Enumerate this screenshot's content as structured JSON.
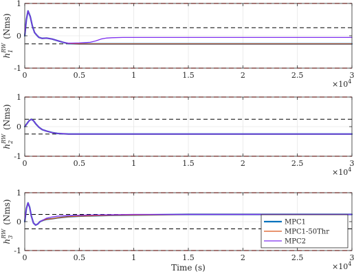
{
  "chart_data": [
    {
      "type": "line",
      "ylabel": "h_1^RW (Nms)",
      "ylabel_main": "h",
      "ylabel_sub": "1",
      "ylabel_sup": "RW",
      "ylabel_unit": "(Nms)",
      "xlim": [
        0,
        30000
      ],
      "ylim": [
        -1,
        1
      ],
      "xticks": [
        0,
        0.5,
        1,
        1.5,
        2,
        2.5,
        3
      ],
      "yticks": [
        -1,
        0,
        1
      ],
      "x_multiplier": "×10",
      "x_multiplier_exp": "4",
      "grid": true,
      "ref_lines": [
        {
          "y": 1,
          "color": "#e8201c",
          "style": "dashed"
        },
        {
          "y": -1,
          "color": "#e8201c",
          "style": "dashed"
        },
        {
          "y": 0.25,
          "color": "#000000",
          "style": "dashed"
        },
        {
          "y": -0.25,
          "color": "#000000",
          "style": "dashed"
        }
      ],
      "series": [
        {
          "name": "MPC1",
          "color": "#0072bd",
          "width": 2.2,
          "x": [
            0,
            150,
            300,
            500,
            700,
            900,
            1100,
            1300,
            1600,
            2000,
            2500,
            3000,
            3500,
            4000,
            5000,
            6000,
            7000,
            8000,
            10000,
            15000,
            20000,
            25000,
            30000
          ],
          "y": [
            0,
            0.5,
            0.77,
            0.6,
            0.3,
            0.1,
            0.02,
            -0.05,
            -0.08,
            -0.07,
            -0.1,
            -0.15,
            -0.2,
            -0.24,
            -0.25,
            -0.25,
            -0.25,
            -0.25,
            -0.25,
            -0.25,
            -0.25,
            -0.25,
            -0.25
          ]
        },
        {
          "name": "MPC1-50Thr",
          "color": "#d95319",
          "width": 1.3,
          "x": [
            0,
            150,
            300,
            500,
            700,
            900,
            1100,
            1300,
            1600,
            2000,
            2500,
            3000,
            3500,
            4000,
            5000,
            6000,
            7000,
            8000,
            10000,
            15000,
            20000,
            25000,
            30000
          ],
          "y": [
            0,
            0.5,
            0.77,
            0.6,
            0.3,
            0.1,
            0.02,
            -0.05,
            -0.08,
            -0.07,
            -0.1,
            -0.15,
            -0.2,
            -0.24,
            -0.25,
            -0.25,
            -0.25,
            -0.25,
            -0.25,
            -0.25,
            -0.25,
            -0.25,
            -0.25
          ]
        },
        {
          "name": "MPC2",
          "color": "#7e2fef",
          "width": 1.3,
          "x": [
            0,
            150,
            300,
            500,
            700,
            900,
            1100,
            1300,
            1600,
            2000,
            2500,
            3000,
            3500,
            4000,
            5000,
            6000,
            6500,
            7000,
            7500,
            8000,
            9000,
            10000,
            15000,
            20000,
            25000,
            30000
          ],
          "y": [
            0,
            0.5,
            0.77,
            0.6,
            0.3,
            0.1,
            0.02,
            -0.05,
            -0.08,
            -0.07,
            -0.1,
            -0.15,
            -0.2,
            -0.23,
            -0.22,
            -0.2,
            -0.16,
            -0.1,
            -0.07,
            -0.06,
            -0.05,
            -0.05,
            -0.05,
            -0.05,
            -0.05,
            -0.05
          ]
        }
      ]
    },
    {
      "type": "line",
      "ylabel": "h_2^RW (Nms)",
      "ylabel_main": "h",
      "ylabel_sub": "2",
      "ylabel_sup": "RW",
      "ylabel_unit": "(Nms)",
      "xlim": [
        0,
        30000
      ],
      "ylim": [
        -1,
        1
      ],
      "xticks": [
        0,
        0.5,
        1,
        1.5,
        2,
        2.5,
        3
      ],
      "yticks": [
        -1,
        0,
        1
      ],
      "x_multiplier": "×10",
      "x_multiplier_exp": "4",
      "grid": true,
      "ref_lines": [
        {
          "y": 1,
          "color": "#e8201c",
          "style": "dashed"
        },
        {
          "y": -1,
          "color": "#e8201c",
          "style": "dashed"
        },
        {
          "y": 0.25,
          "color": "#000000",
          "style": "dashed"
        },
        {
          "y": -0.25,
          "color": "#000000",
          "style": "dashed"
        }
      ],
      "series": [
        {
          "name": "MPC1",
          "color": "#0072bd",
          "width": 2.2,
          "x": [
            0,
            200,
            400,
            600,
            800,
            1000,
            1300,
            1600,
            2000,
            2500,
            3000,
            3500,
            4000,
            5000,
            10000,
            20000,
            30000
          ],
          "y": [
            0,
            0.1,
            0.2,
            0.25,
            0.2,
            0.1,
            -0.02,
            -0.1,
            -0.15,
            -0.2,
            -0.23,
            -0.24,
            -0.25,
            -0.25,
            -0.25,
            -0.25,
            -0.25
          ]
        },
        {
          "name": "MPC1-50Thr",
          "color": "#d95319",
          "width": 1.3,
          "x": [
            0,
            200,
            400,
            600,
            800,
            1000,
            1300,
            1600,
            2000,
            2500,
            3000,
            3500,
            4000,
            5000,
            10000,
            20000,
            30000
          ],
          "y": [
            0,
            0.1,
            0.2,
            0.25,
            0.2,
            0.1,
            -0.02,
            -0.1,
            -0.15,
            -0.2,
            -0.23,
            -0.24,
            -0.25,
            -0.25,
            -0.25,
            -0.25,
            -0.25
          ]
        },
        {
          "name": "MPC2",
          "color": "#7e2fef",
          "width": 1.3,
          "x": [
            0,
            200,
            400,
            600,
            800,
            1000,
            1300,
            1600,
            2000,
            2500,
            3000,
            3500,
            4000,
            5000,
            10000,
            20000,
            30000
          ],
          "y": [
            0,
            0.1,
            0.2,
            0.25,
            0.2,
            0.1,
            -0.02,
            -0.1,
            -0.15,
            -0.2,
            -0.23,
            -0.24,
            -0.25,
            -0.25,
            -0.25,
            -0.25,
            -0.25
          ]
        }
      ]
    },
    {
      "type": "line",
      "ylabel": "h_3^RW (Nms)",
      "ylabel_main": "h",
      "ylabel_sub": "3",
      "ylabel_sup": "RW",
      "ylabel_unit": "(Nms)",
      "xlabel": "Time (s)",
      "xlim": [
        0,
        30000
      ],
      "ylim": [
        -1,
        1
      ],
      "xticks": [
        0,
        0.5,
        1,
        1.5,
        2,
        2.5,
        3
      ],
      "yticks": [
        -1,
        0,
        1
      ],
      "x_multiplier": "×10",
      "x_multiplier_exp": "4",
      "grid": true,
      "legend": "bottom-right",
      "ref_lines": [
        {
          "y": 1,
          "color": "#e8201c",
          "style": "dashed"
        },
        {
          "y": -1,
          "color": "#e8201c",
          "style": "dashed"
        },
        {
          "y": 0.25,
          "color": "#000000",
          "style": "dashed"
        },
        {
          "y": -0.25,
          "color": "#000000",
          "style": "dashed"
        }
      ],
      "series": [
        {
          "name": "MPC1",
          "color": "#0072bd",
          "width": 2.2,
          "x": [
            0,
            150,
            300,
            450,
            600,
            800,
            1000,
            1200,
            1400,
            1700,
            2000,
            2500,
            3000,
            4000,
            5000,
            6000,
            8000,
            10000,
            15000,
            20000,
            25000,
            30000
          ],
          "y": [
            0,
            0.45,
            0.65,
            0.5,
            0.2,
            -0.05,
            -0.12,
            -0.08,
            0.0,
            0.05,
            0.08,
            0.1,
            0.13,
            0.17,
            0.19,
            0.2,
            0.22,
            0.23,
            0.25,
            0.25,
            0.25,
            0.25
          ]
        },
        {
          "name": "MPC1-50Thr",
          "color": "#d95319",
          "width": 1.3,
          "x": [
            0,
            150,
            300,
            450,
            600,
            800,
            1000,
            1200,
            1400,
            1700,
            2000,
            2500,
            3000,
            4000,
            5000,
            6000,
            8000,
            10000,
            15000,
            20000,
            25000,
            30000
          ],
          "y": [
            0,
            0.45,
            0.65,
            0.5,
            0.2,
            -0.05,
            -0.12,
            -0.08,
            0.0,
            0.05,
            0.08,
            0.1,
            0.13,
            0.17,
            0.19,
            0.2,
            0.22,
            0.23,
            0.25,
            0.25,
            0.25,
            0.25
          ]
        },
        {
          "name": "MPC2",
          "color": "#7e2fef",
          "width": 1.3,
          "x": [
            0,
            150,
            300,
            450,
            600,
            800,
            1000,
            1200,
            1400,
            1700,
            2000,
            2500,
            3000,
            4000,
            5000,
            6000,
            8000,
            10000,
            15000,
            20000,
            25000,
            30000
          ],
          "y": [
            0,
            0.45,
            0.65,
            0.5,
            0.2,
            -0.05,
            -0.12,
            -0.08,
            0.0,
            0.06,
            0.12,
            0.16,
            0.19,
            0.21,
            0.22,
            0.23,
            0.24,
            0.25,
            0.25,
            0.25,
            0.25,
            0.25
          ]
        }
      ]
    }
  ]
}
